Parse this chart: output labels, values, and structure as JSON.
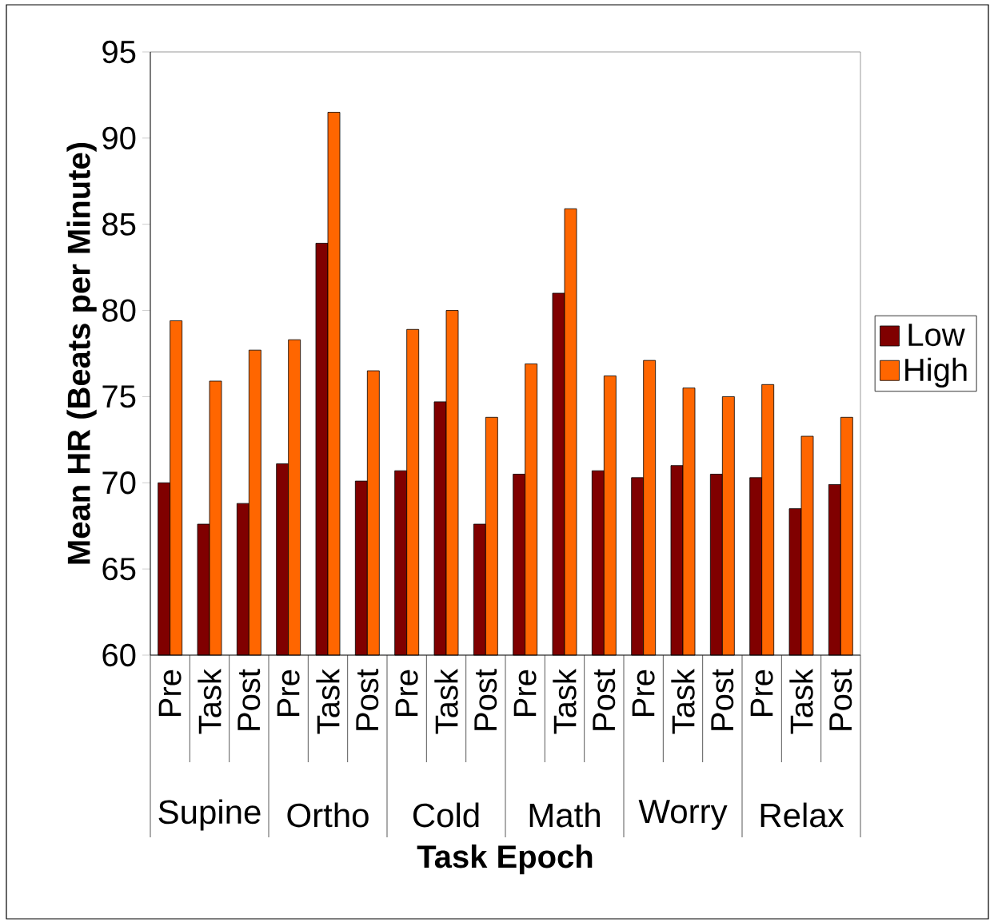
{
  "chart_data": {
    "type": "bar",
    "xlabel": "Task Epoch",
    "ylabel": "Mean HR (Beats per Minute)",
    "categories": [
      "Pre",
      "Task",
      "Post",
      "Pre",
      "Task",
      "Post",
      "Pre",
      "Task",
      "Post",
      "Pre",
      "Task",
      "Post",
      "Pre",
      "Task",
      "Post",
      "Pre",
      "Task",
      "Post"
    ],
    "annotations": [
      "Supine",
      "Ortho",
      "Cold",
      "Math",
      "Worry",
      "Relax"
    ],
    "series": [
      {
        "name": "Low",
        "color": "#800000",
        "values": [
          70.0,
          67.6,
          68.8,
          71.1,
          83.9,
          70.1,
          70.7,
          74.7,
          67.6,
          70.5,
          81.0,
          70.7,
          70.3,
          71.0,
          70.5,
          70.3,
          68.5,
          69.9
        ]
      },
      {
        "name": "High",
        "color": "#ff6600",
        "values": [
          79.4,
          75.9,
          77.7,
          78.3,
          91.5,
          76.5,
          78.9,
          80.0,
          73.8,
          76.9,
          85.9,
          76.2,
          77.1,
          75.5,
          75.0,
          75.7,
          72.7,
          73.8
        ]
      }
    ],
    "ylim": [
      60,
      95
    ],
    "yticks": [
      60,
      65,
      70,
      75,
      80,
      85,
      90,
      95
    ],
    "legend": "right"
  }
}
